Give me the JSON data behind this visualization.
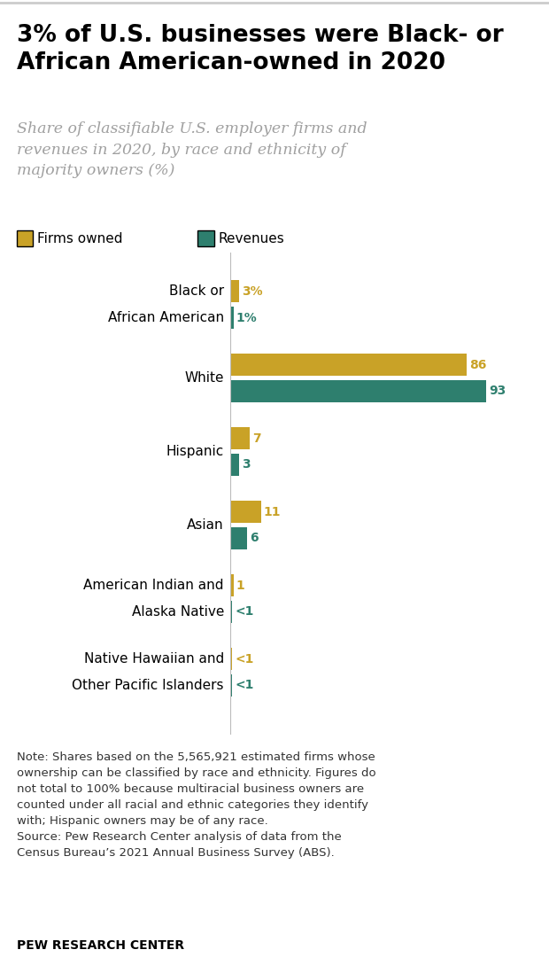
{
  "title": "3% of U.S. businesses were Black- or\nAfrican American-owned in 2020",
  "subtitle": "Share of classifiable U.S. employer firms and\nrevenues in 2020, by race and ethnicity of\nmajority owners (%)",
  "legend_items": [
    "Firms owned",
    "Revenues"
  ],
  "color_firms": "#C9A227",
  "color_revenues": "#2E7F6E",
  "categories": [
    "Black or\nAfrican American",
    "White",
    "Hispanic",
    "Asian",
    "American Indian and\nAlaska Native",
    "Native Hawaiian and\nOther Pacific Islanders"
  ],
  "firms_values": [
    3,
    86,
    7,
    11,
    1,
    0.5
  ],
  "revenue_values": [
    1,
    93,
    3,
    6,
    0.5,
    0.5
  ],
  "firms_labels": [
    "3%",
    "86",
    "7",
    "11",
    "1",
    "<1"
  ],
  "revenue_labels": [
    "1%",
    "93",
    "3",
    "6",
    "<1",
    "<1"
  ],
  "note_text": "Note: Shares based on the 5,565,921 estimated firms whose\nownership can be classified by race and ethnicity. Figures do\nnot total to 100% because multiracial business owners are\ncounted under all racial and ethnic categories they identify\nwith; Hispanic owners may be of any race.\nSource: Pew Research Center analysis of data from the\nCensus Bureau’s 2021 Annual Business Survey (ABS).",
  "source_label": "PEW RESEARCH CENTER",
  "bg_color": "#FFFFFF",
  "bar_height": 0.3,
  "bar_gap": 0.06,
  "xlim": [
    0,
    108
  ]
}
